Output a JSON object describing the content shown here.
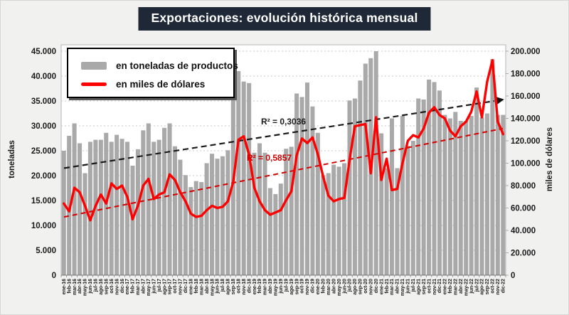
{
  "title": "Exportaciones: evolución histórica mensual",
  "colors": {
    "bar": "#a9a9a9",
    "line": "#fe0000",
    "trend_black": "#1a1a1a",
    "trend_red": "#d40000",
    "title_bg": "#1f2836",
    "title_fg": "#ffffff"
  },
  "legend": {
    "items": [
      {
        "swatch": "bar-swatch",
        "label": "en toneladas de productos"
      },
      {
        "swatch": "line-swatch",
        "label": "en miles de dólares"
      }
    ]
  },
  "chart_data": {
    "type": "bar",
    "title": "Exportaciones: evolución histórica mensual",
    "grid": true,
    "legend_position": "top-left",
    "categories": [
      "ene-16",
      "feb-16",
      "mar-16",
      "abr-16",
      "may-16",
      "jun-16",
      "jul-16",
      "ago-16",
      "sep-16",
      "oct-16",
      "nov-16",
      "dic-16",
      "ene-17",
      "feb-17",
      "mar-17",
      "abr-17",
      "may-17",
      "jun-17",
      "jul-17",
      "ago-17",
      "sep-17",
      "oct-17",
      "nov-17",
      "dic-17",
      "ene-18",
      "feb-18",
      "mar-18",
      "abr-18",
      "may-18",
      "jun-18",
      "jul-18",
      "ago-18",
      "sep-18",
      "oct-18",
      "nov-18",
      "dic-18",
      "ene-19",
      "feb-19",
      "mar-19",
      "abr-19",
      "may-19",
      "jun-19",
      "jul-19",
      "ago-19",
      "sep-19",
      "oct-19",
      "nov-19",
      "dic-19",
      "ene-20",
      "feb-20",
      "mar-20",
      "abr-20",
      "may-20",
      "jun-20",
      "jul-20",
      "ago-20",
      "sep-20",
      "oct-20",
      "nov-20",
      "dic-20",
      "ene-21",
      "feb-21",
      "mar-21",
      "abr-21",
      "may-21",
      "jun-21",
      "jul-21",
      "ago-21",
      "sep-21",
      "oct-21",
      "nov-21",
      "dic-21",
      "ene-22",
      "feb-22",
      "mar-22",
      "abr-22",
      "may-22",
      "jun-22",
      "jul-22",
      "ago-22",
      "sep-22",
      "oct-22",
      "nov-22",
      "dic-22"
    ],
    "series": [
      {
        "name": "en toneladas de productos",
        "type": "bar",
        "axis": "left",
        "values": [
          25000,
          28000,
          30500,
          26500,
          20500,
          26800,
          27200,
          27200,
          28600,
          26800,
          28200,
          27400,
          26800,
          22000,
          25300,
          29100,
          30500,
          26800,
          27200,
          29600,
          30500,
          25900,
          23200,
          20100,
          17700,
          18900,
          18700,
          22500,
          24400,
          23400,
          23900,
          25100,
          37300,
          41000,
          38900,
          38600,
          24600,
          26500,
          24600,
          17500,
          16300,
          18400,
          25400,
          25800,
          36500,
          35800,
          38700,
          33900,
          28600,
          20100,
          20500,
          22200,
          21800,
          22500,
          35100,
          35500,
          39100,
          42500,
          43600,
          45000,
          28500,
          21500,
          31500,
          21500,
          32000,
          26000,
          27000,
          35500,
          35300,
          39300,
          38800,
          37100,
          32200,
          31500,
          32800,
          31000,
          31000,
          32000,
          37700,
          31700,
          32500,
          43400,
          32200,
          32200
        ]
      },
      {
        "name": "en miles de dólares",
        "type": "line",
        "axis": "right",
        "values": [
          64000,
          57000,
          78000,
          74000,
          62000,
          49000,
          62000,
          72000,
          64000,
          82000,
          77000,
          80000,
          70000,
          50000,
          62000,
          80000,
          86000,
          68000,
          72000,
          74000,
          90000,
          85000,
          74000,
          66000,
          55000,
          52000,
          53000,
          58000,
          62000,
          60000,
          61000,
          66000,
          83000,
          121000,
          124000,
          108000,
          78000,
          66000,
          58000,
          54000,
          56000,
          58000,
          67000,
          75000,
          107000,
          122000,
          118000,
          123000,
          108000,
          88000,
          71000,
          66000,
          68000,
          69000,
          103000,
          133000,
          134000,
          135000,
          91000,
          141000,
          85000,
          104000,
          76000,
          77000,
          100000,
          120000,
          125000,
          123000,
          131000,
          145000,
          150000,
          143000,
          140000,
          129000,
          124000,
          133000,
          137000,
          146000,
          164000,
          141000,
          173000,
          192000,
          137000,
          126000
        ]
      }
    ],
    "left_axis": {
      "label": "toneladas",
      "min": 0,
      "max": 45000,
      "step": 5000,
      "ticks": [
        "0",
        "5.000",
        "10.000",
        "15.000",
        "20.000",
        "25.000",
        "30.000",
        "35.000",
        "40.000",
        "45.000"
      ]
    },
    "right_axis": {
      "label": "miles de dólares",
      "min": 0,
      "max": 200000,
      "step": 20000,
      "ticks": [
        "0",
        "20.000",
        "40.000",
        "60.000",
        "80.000",
        "100.000",
        "120.000",
        "140.000",
        "160.000",
        "180.000",
        "200.000"
      ]
    },
    "trendlines": [
      {
        "series": "en toneladas de productos",
        "style": "dashed",
        "color": "#1a1a1a",
        "start": 21500,
        "end": 35000,
        "r2_label": "R² = 0,3036"
      },
      {
        "series": "en miles de dólares",
        "style": "dashed",
        "color": "#d40000",
        "start": 52000,
        "end": 131000,
        "r2_label": "R² = 0,5857"
      }
    ]
  }
}
